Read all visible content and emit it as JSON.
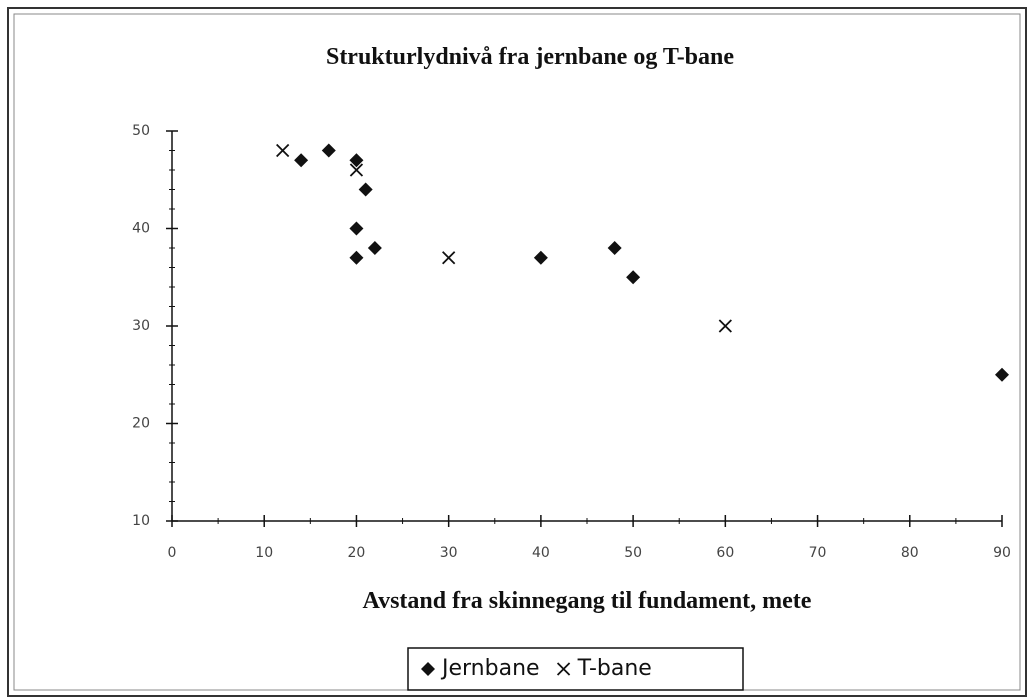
{
  "chart_data": {
    "type": "scatter",
    "title": "Strukturlydnivå fra jernbane og T-bane",
    "x_label": "Avstand fra skinnegang til fundament, mete",
    "xlim": [
      0,
      90
    ],
    "xticks": [
      0,
      10,
      20,
      30,
      40,
      50,
      60,
      70,
      80,
      90
    ],
    "ylim": [
      10,
      50
    ],
    "yticks": [
      10,
      20,
      30,
      40,
      50
    ],
    "legend": "bottom",
    "series": [
      {
        "name": "Jernbane",
        "color": "#111111",
        "marker": "diamond",
        "x": [
          14,
          17,
          20,
          21,
          20,
          20,
          22,
          40,
          48,
          50,
          90
        ],
        "values": [
          47,
          48,
          47,
          44,
          40,
          37,
          38,
          37,
          38,
          35,
          25
        ]
      },
      {
        "name": "T-bane",
        "color": "#111111",
        "marker": "cross",
        "x": [
          12,
          20,
          30,
          60
        ],
        "values": [
          48,
          46,
          37,
          30
        ]
      }
    ]
  }
}
